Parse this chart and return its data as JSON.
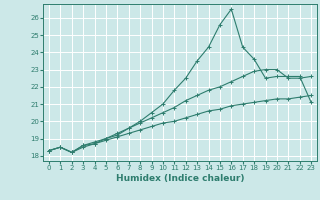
{
  "title": "",
  "xlabel": "Humidex (Indice chaleur)",
  "ylabel": "",
  "bg_color": "#cce8e8",
  "grid_color": "#ffffff",
  "line_color": "#2e7d6e",
  "xlim": [
    -0.5,
    23.5
  ],
  "ylim": [
    17.7,
    26.8
  ],
  "xticks": [
    0,
    1,
    2,
    3,
    4,
    5,
    6,
    7,
    8,
    9,
    10,
    11,
    12,
    13,
    14,
    15,
    16,
    17,
    18,
    19,
    20,
    21,
    22,
    23
  ],
  "yticks": [
    18,
    19,
    20,
    21,
    22,
    23,
    24,
    25,
    26
  ],
  "line1_x": [
    0,
    1,
    2,
    3,
    4,
    5,
    6,
    7,
    8,
    9,
    10,
    11,
    12,
    13,
    14,
    15,
    16,
    17,
    18,
    19,
    20,
    21,
    22,
    23
  ],
  "line1_y": [
    18.3,
    18.5,
    18.2,
    18.6,
    18.7,
    19.0,
    19.3,
    19.6,
    20.0,
    20.5,
    21.0,
    21.8,
    22.5,
    23.5,
    24.3,
    25.6,
    26.5,
    24.3,
    23.6,
    22.5,
    22.6,
    22.6,
    22.6,
    21.1
  ],
  "line2_x": [
    0,
    1,
    2,
    3,
    4,
    5,
    6,
    7,
    8,
    9,
    10,
    11,
    12,
    13,
    14,
    15,
    16,
    17,
    18,
    19,
    20,
    21,
    22,
    23
  ],
  "line2_y": [
    18.3,
    18.5,
    18.2,
    18.6,
    18.8,
    19.0,
    19.2,
    19.6,
    19.9,
    20.2,
    20.5,
    20.8,
    21.2,
    21.5,
    21.8,
    22.0,
    22.3,
    22.6,
    22.9,
    23.0,
    23.0,
    22.5,
    22.5,
    22.6
  ],
  "line3_x": [
    0,
    1,
    2,
    3,
    4,
    5,
    6,
    7,
    8,
    9,
    10,
    11,
    12,
    13,
    14,
    15,
    16,
    17,
    18,
    19,
    20,
    21,
    22,
    23
  ],
  "line3_y": [
    18.3,
    18.5,
    18.2,
    18.5,
    18.7,
    18.9,
    19.1,
    19.3,
    19.5,
    19.7,
    19.9,
    20.0,
    20.2,
    20.4,
    20.6,
    20.7,
    20.9,
    21.0,
    21.1,
    21.2,
    21.3,
    21.3,
    21.4,
    21.5
  ],
  "marker": "+",
  "marker_size": 3,
  "linewidth": 0.8
}
